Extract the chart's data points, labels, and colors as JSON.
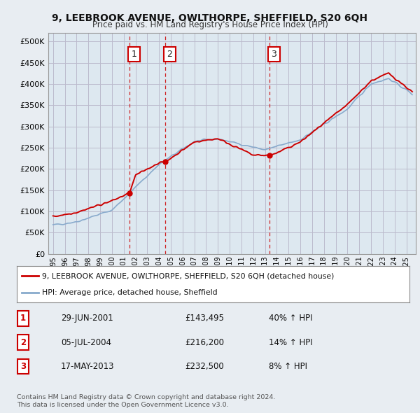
{
  "title1": "9, LEEBROOK AVENUE, OWLTHORPE, SHEFFIELD, S20 6QH",
  "title2": "Price paid vs. HM Land Registry's House Price Index (HPI)",
  "ylim": [
    0,
    520000
  ],
  "yticks": [
    0,
    50000,
    100000,
    150000,
    200000,
    250000,
    300000,
    350000,
    400000,
    450000,
    500000
  ],
  "ytick_labels": [
    "£0",
    "£50K",
    "£100K",
    "£150K",
    "£200K",
    "£250K",
    "£300K",
    "£350K",
    "£400K",
    "£450K",
    "£500K"
  ],
  "purchases": [
    {
      "date_num": 2001.49,
      "price": 143495,
      "label": "1"
    },
    {
      "date_num": 2004.51,
      "price": 216200,
      "label": "2"
    },
    {
      "date_num": 2013.37,
      "price": 232500,
      "label": "3"
    }
  ],
  "purchase_vline_color": "#cc0000",
  "hpi_color": "#88aacc",
  "price_color": "#cc0000",
  "legend_entries": [
    "9, LEEBROOK AVENUE, OWLTHORPE, SHEFFIELD, S20 6QH (detached house)",
    "HPI: Average price, detached house, Sheffield"
  ],
  "table_rows": [
    {
      "num": "1",
      "date": "29-JUN-2001",
      "price": "£143,495",
      "change": "40% ↑ HPI"
    },
    {
      "num": "2",
      "date": "05-JUL-2004",
      "price": "£216,200",
      "change": "14% ↑ HPI"
    },
    {
      "num": "3",
      "date": "17-MAY-2013",
      "price": "£232,500",
      "change": "8% ↑ HPI"
    }
  ],
  "footnote": "Contains HM Land Registry data © Crown copyright and database right 2024.\nThis data is licensed under the Open Government Licence v3.0.",
  "background_color": "#e8edf2",
  "plot_bg_color": "#dde8f0",
  "grid_color": "#bbbbcc"
}
